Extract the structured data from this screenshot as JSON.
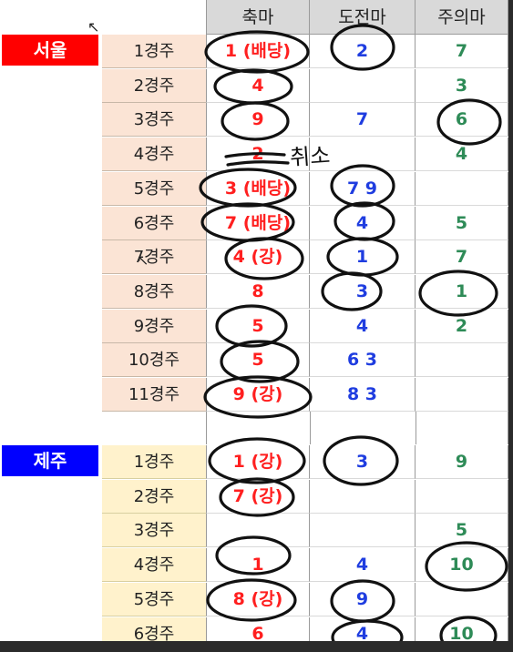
{
  "columns": [
    "축마",
    "도전마",
    "주의마"
  ],
  "colors": {
    "seoul": "#ff0000",
    "jeju": "#0000ff",
    "main": "#ff1f1f",
    "challenger": "#1f3de0",
    "caution": "#2e8b57"
  },
  "seoul": {
    "label": "서울",
    "rows": [
      {
        "race": "1경주",
        "main": "1 (배당)",
        "challenger": "2",
        "caution": "7"
      },
      {
        "race": "2경주",
        "main": "4",
        "challenger": "",
        "caution": "3"
      },
      {
        "race": "3경주",
        "main": "9",
        "challenger": "7",
        "caution": "6"
      },
      {
        "race": "4경주",
        "main": "2",
        "challenger": "",
        "caution": "4"
      },
      {
        "race": "5경주",
        "main": "3 (배당)",
        "challenger": "7 9",
        "caution": ""
      },
      {
        "race": "6경주",
        "main": "7 (배당)",
        "challenger": "4",
        "caution": "5"
      },
      {
        "race": "7경주",
        "main": "4 (강)",
        "challenger": "1",
        "caution": "7"
      },
      {
        "race": "8경주",
        "main": "8",
        "challenger": "3",
        "caution": "1"
      },
      {
        "race": "9경주",
        "main": "5",
        "challenger": "4",
        "caution": "2"
      },
      {
        "race": "10경주",
        "main": "5",
        "challenger": "6 3",
        "caution": ""
      },
      {
        "race": "11경주",
        "main": "9 (강)",
        "challenger": "8 3",
        "caution": ""
      }
    ]
  },
  "jeju": {
    "label": "제주",
    "rows": [
      {
        "race": "1경주",
        "main": "1 (강)",
        "challenger": "3",
        "caution": "9"
      },
      {
        "race": "2경주",
        "main": "7 (강)",
        "challenger": "",
        "caution": ""
      },
      {
        "race": "3경주",
        "main": "",
        "challenger": "",
        "caution": "5"
      },
      {
        "race": "4경주",
        "main": "1",
        "challenger": "4",
        "caution": "10"
      },
      {
        "race": "5경주",
        "main": "8 (강)",
        "challenger": "9",
        "caution": ""
      },
      {
        "race": "6경주",
        "main": "6",
        "challenger": "4",
        "caution": "10"
      }
    ]
  },
  "annotation": {
    "handwritten": "취소"
  }
}
